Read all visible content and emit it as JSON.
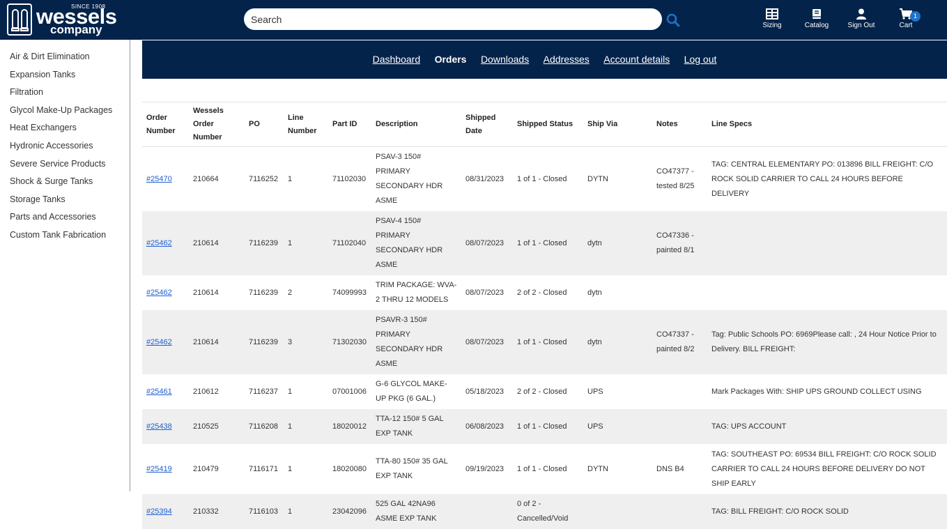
{
  "brand": {
    "since": "SINCE 1908",
    "name": "wessels",
    "sub": "company"
  },
  "search": {
    "placeholder": "Search"
  },
  "header_nav": [
    {
      "label": "Sizing",
      "icon": "table-icon"
    },
    {
      "label": "Catalog",
      "icon": "book-icon"
    },
    {
      "label": "Sign Out",
      "icon": "user-icon"
    },
    {
      "label": "Cart",
      "icon": "cart-icon",
      "badge": "1"
    }
  ],
  "sidebar": {
    "items": [
      "Air & Dirt Elimination",
      "Expansion Tanks",
      "Filtration",
      "Glycol Make-Up Packages",
      "Heat Exchangers",
      "Hydronic Accessories",
      "Severe Service Products",
      "Shock & Surge Tanks",
      "Storage Tanks",
      "Parts and Accessories",
      "Custom Tank Fabrication"
    ]
  },
  "account_nav": {
    "items": [
      "Dashboard",
      "Orders",
      "Downloads",
      "Addresses",
      "Account details",
      "Log out"
    ],
    "active": "Orders"
  },
  "orders_table": {
    "headers": [
      "Order Number",
      "Wessels Order Number",
      "PO",
      "Line Number",
      "Part ID",
      "Description",
      "Shipped Date",
      "Shipped Status",
      "Ship Via",
      "Notes",
      "Line Specs"
    ],
    "rows": [
      {
        "order": "#25470",
        "wessels": "210664",
        "po": "7116252",
        "line": "1",
        "part": "71102030",
        "desc": "PSAV-3 150# PRIMARY SECONDARY HDR ASME",
        "date": "08/31/2023",
        "status": "1 of 1 - Closed",
        "via": "DYTN",
        "notes": "CO47377 - tested 8/25",
        "specs": "TAG: CENTRAL ELEMENTARY PO: 013896 BILL FREIGHT: C/O ROCK SOLID CARRIER TO CALL 24 HOURS BEFORE DELIVERY"
      },
      {
        "order": "#25462",
        "wessels": "210614",
        "po": "7116239",
        "line": "1",
        "part": "71102040",
        "desc": "PSAV-4 150# PRIMARY SECONDARY HDR ASME",
        "date": "08/07/2023",
        "status": "1 of 1 - Closed",
        "via": "dytn",
        "notes": "CO47336 - painted 8/1",
        "specs": ""
      },
      {
        "order": "#25462",
        "wessels": "210614",
        "po": "7116239",
        "line": "2",
        "part": "74099993",
        "desc": "TRIM PACKAGE: WVA-2 THRU 12 MODELS",
        "date": "08/07/2023",
        "status": "2 of 2 - Closed",
        "via": "dytn",
        "notes": "",
        "specs": ""
      },
      {
        "order": "#25462",
        "wessels": "210614",
        "po": "7116239",
        "line": "3",
        "part": "71302030",
        "desc": "PSAVR-3 150# PRIMARY SECONDARY HDR ASME",
        "date": "08/07/2023",
        "status": "1 of 1 - Closed",
        "via": "dytn",
        "notes": "CO47337 - painted 8/2",
        "specs": "Tag: Public Schools PO: 6969Please call: , 24 Hour Notice Prior to Delivery. BILL FREIGHT:"
      },
      {
        "order": "#25461",
        "wessels": "210612",
        "po": "7116237",
        "line": "1",
        "part": "07001006",
        "desc": "G-6 GLYCOL MAKE-UP PKG (6 GAL.)",
        "date": "05/18/2023",
        "status": "2 of 2 - Closed",
        "via": "UPS",
        "notes": "",
        "specs": "Mark Packages With: SHIP UPS GROUND COLLECT USING"
      },
      {
        "order": "#25438",
        "wessels": "210525",
        "po": "7116208",
        "line": "1",
        "part": "18020012",
        "desc": "TTA-12 150# 5 GAL EXP TANK",
        "date": "06/08/2023",
        "status": "1 of 1 - Closed",
        "via": "UPS",
        "notes": "",
        "specs": "TAG: UPS ACCOUNT"
      },
      {
        "order": "#25419",
        "wessels": "210479",
        "po": "7116171",
        "line": "1",
        "part": "18020080",
        "desc": "TTA-80 150# 35 GAL EXP TANK",
        "date": "09/19/2023",
        "status": "1 of 1 - Closed",
        "via": "DYTN",
        "notes": "DNS B4",
        "specs": "TAG: SOUTHEAST PO: 69534 BILL FREIGHT: C/O ROCK SOLID CARRIER TO CALL 24 HOURS BEFORE DELIVERY DO NOT SHIP EARLY"
      },
      {
        "order": "#25394",
        "wessels": "210332",
        "po": "7116103",
        "line": "1",
        "part": "23042096",
        "desc": "525 GAL 42NA96 ASME EXP TANK",
        "date": "",
        "status": "0 of 2 - Cancelled/Void",
        "via": "",
        "notes": "",
        "specs": "TAG: BILL FREIGHT: C/O ROCK SOLID"
      }
    ]
  }
}
